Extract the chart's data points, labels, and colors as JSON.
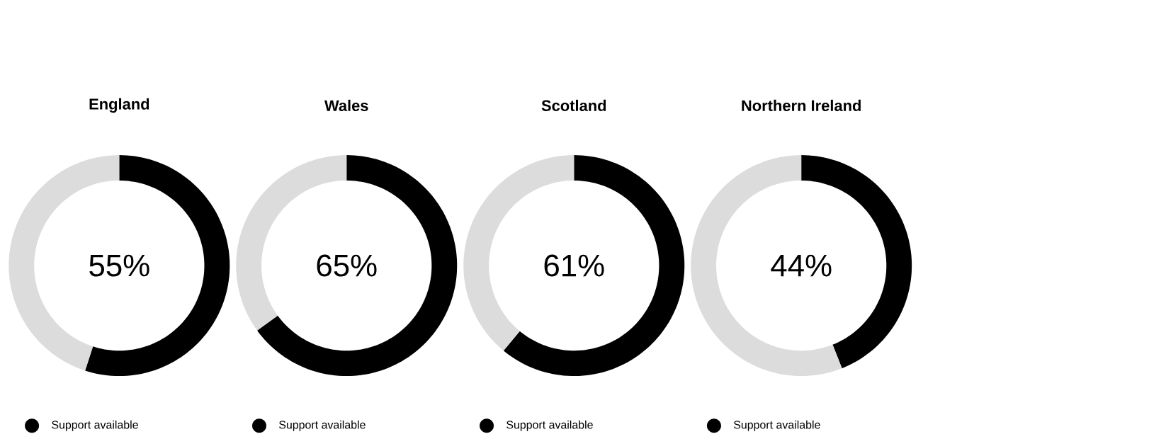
{
  "chart_data": [
    {
      "type": "donut",
      "title": "England",
      "categories": [
        "Support available",
        null
      ],
      "values": [
        55,
        45
      ],
      "colors": [
        "#000000",
        "#dcdcdc"
      ],
      "legend": "bottom",
      "annotations": [
        "55%"
      ]
    },
    {
      "type": "donut",
      "title": "Wales",
      "categories": [
        "Support available",
        null
      ],
      "values": [
        65,
        35
      ],
      "colors": [
        "#000000",
        "#dcdcdc"
      ],
      "legend": "bottom",
      "annotations": [
        "65%"
      ]
    },
    {
      "type": "donut",
      "title": "Scotland",
      "categories": [
        "Support available",
        null
      ],
      "values": [
        61,
        39
      ],
      "colors": [
        "#000000",
        "#dcdcdc"
      ],
      "legend": "bottom",
      "annotations": [
        "61%"
      ]
    },
    {
      "type": "donut",
      "title": "Northern Ireland",
      "categories": [
        "Support available",
        null
      ],
      "values": [
        44,
        56
      ],
      "colors": [
        "#000000",
        "#dcdcdc"
      ],
      "legend": "bottom",
      "annotations": [
        "44%"
      ]
    }
  ]
}
